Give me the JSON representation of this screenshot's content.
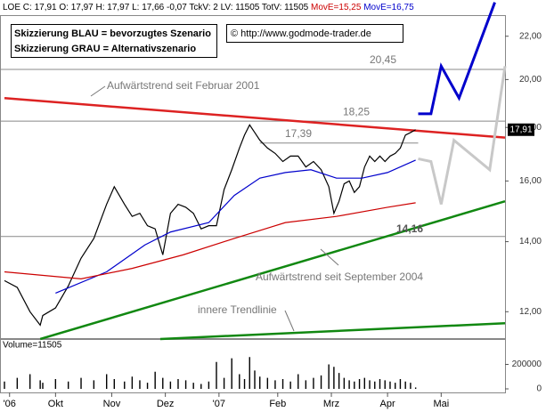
{
  "header": {
    "text": "LOE C: 17,91 O: 17,97 H: 17,97 L: 17,66 -0,07 TckV: 2 LV: 11505 TotV: 11505",
    "ma_red": "MovE=15,25",
    "ma_blue": "MovE=16,75"
  },
  "legend_box": {
    "line1": "Skizzierung BLAU = bevorzugtes Szenario",
    "line2": "Skizzierung GRAU = Alternativszenario",
    "copyright": "© http://www.godmode-trader.de"
  },
  "chart_data": [
    {
      "type": "line",
      "log_scale": true,
      "ylim": [
        11.3,
        23
      ],
      "xlim": [
        0,
        196
      ],
      "yticks": [
        {
          "value": 12,
          "label": "12,00"
        },
        {
          "value": 14,
          "label": "14,00"
        },
        {
          "value": 16,
          "label": "16,00"
        },
        {
          "value": 18,
          "label": "18,00"
        },
        {
          "value": 20,
          "label": "20,00"
        },
        {
          "value": 22,
          "label": "22,00"
        }
      ],
      "xticks": [
        {
          "value": 2,
          "label": "'06"
        },
        {
          "value": 20,
          "label": "Okt"
        },
        {
          "value": 42,
          "label": "Nov"
        },
        {
          "value": 63,
          "label": "Dez"
        },
        {
          "value": 84,
          "label": "'07"
        },
        {
          "value": 107,
          "label": "Feb"
        },
        {
          "value": 128,
          "label": "Mrz"
        },
        {
          "value": 150,
          "label": "Apr"
        },
        {
          "value": 171,
          "label": "Mai"
        }
      ],
      "last_price_label": "17,91",
      "series": [
        {
          "color": "#000000",
          "x": [
            0,
            5,
            10,
            14,
            15,
            20,
            25,
            30,
            35,
            40,
            43,
            47,
            50,
            53,
            56,
            59,
            62,
            65,
            68,
            71,
            74,
            77,
            80,
            83,
            86,
            89,
            92,
            94,
            96,
            98,
            100,
            103,
            106,
            109,
            112,
            115,
            118,
            121,
            124,
            127,
            129,
            131,
            133,
            135,
            137,
            139,
            141,
            143,
            145,
            147,
            149,
            151,
            153,
            155,
            157,
            159,
            161
          ],
          "values": [
            12.85,
            12.66,
            12.0,
            11.65,
            11.9,
            12.1,
            12.7,
            13.5,
            14.1,
            15.2,
            15.8,
            15.2,
            14.8,
            14.9,
            14.5,
            14.4,
            13.6,
            14.9,
            15.2,
            15.1,
            14.9,
            14.4,
            14.5,
            14.5,
            15.7,
            16.4,
            17.2,
            17.7,
            18.1,
            17.8,
            17.5,
            17.2,
            17.0,
            16.7,
            16.9,
            16.9,
            16.5,
            16.7,
            16.4,
            15.8,
            14.9,
            15.3,
            15.9,
            16.0,
            15.6,
            15.8,
            16.5,
            16.9,
            16.7,
            16.9,
            16.7,
            16.9,
            17.0,
            17.2,
            17.7,
            17.8,
            17.91
          ]
        },
        {
          "color": "#0000cc",
          "x": [
            20,
            40,
            55,
            65,
            80,
            90,
            100,
            110,
            120,
            130,
            140,
            150,
            161
          ],
          "values": [
            12.5,
            13.1,
            13.9,
            14.3,
            14.6,
            15.5,
            16.1,
            16.3,
            16.4,
            16.1,
            16.1,
            16.3,
            16.75
          ]
        },
        {
          "color": "#cc0000",
          "x": [
            0,
            30,
            50,
            70,
            90,
            110,
            130,
            150,
            161
          ],
          "values": [
            13.1,
            12.9,
            13.2,
            13.6,
            14.1,
            14.6,
            14.8,
            15.1,
            15.25
          ]
        },
        {
          "color": "#0000cc",
          "width": 3,
          "x": [
            162,
            167,
            171,
            178,
            192
          ],
          "values": [
            18.55,
            18.55,
            20.6,
            19.2,
            23.7
          ]
        },
        {
          "color": "#c8c8c8",
          "width": 3,
          "x": [
            162,
            167,
            171,
            176,
            190,
            196
          ],
          "values": [
            16.8,
            16.7,
            15.2,
            17.5,
            16.4,
            20.6
          ]
        }
      ],
      "trendlines": [
        {
          "color": "#dd2222",
          "x": [
            0,
            196
          ],
          "values": [
            19.2,
            17.6
          ]
        },
        {
          "color": "#118811",
          "x": [
            14,
            196
          ],
          "values": [
            11.3,
            15.3
          ]
        },
        {
          "color": "#118811",
          "x": [
            61,
            196
          ],
          "values": [
            11.3,
            11.7
          ]
        }
      ],
      "hlines": [
        {
          "value": 20.45,
          "label": "20,45"
        },
        {
          "value": 18.25,
          "label": "18,25"
        },
        {
          "value": 17.39,
          "label": "17,39",
          "x": [
            100,
            162
          ]
        },
        {
          "value": 14.16,
          "label": "14,16"
        }
      ],
      "annotations": [
        "Aufwärtstrend seit Februar 2001",
        "Aufwärtstrend seit September 2004",
        "innere Trendlinie"
      ]
    },
    {
      "type": "bar",
      "title": "Volume=11505",
      "ylim": [
        0,
        400000
      ],
      "yticks": [
        0,
        200000
      ],
      "color": "#000000",
      "x": [
        0,
        5,
        10,
        14,
        15,
        20,
        25,
        30,
        35,
        40,
        43,
        47,
        50,
        53,
        56,
        59,
        62,
        65,
        68,
        71,
        74,
        77,
        80,
        83,
        86,
        89,
        92,
        94,
        96,
        98,
        100,
        103,
        106,
        109,
        112,
        115,
        118,
        121,
        124,
        127,
        129,
        131,
        133,
        135,
        137,
        139,
        141,
        143,
        145,
        147,
        149,
        151,
        153,
        155,
        157,
        159,
        161
      ],
      "values": [
        60000,
        90000,
        120000,
        70000,
        50000,
        80000,
        60000,
        90000,
        70000,
        120000,
        80000,
        60000,
        100000,
        70000,
        50000,
        140000,
        90000,
        60000,
        80000,
        70000,
        50000,
        40000,
        60000,
        220000,
        90000,
        250000,
        120000,
        80000,
        260000,
        150000,
        100000,
        90000,
        70000,
        80000,
        60000,
        120000,
        70000,
        90000,
        110000,
        200000,
        180000,
        130000,
        90000,
        70000,
        60000,
        80000,
        90000,
        70000,
        60000,
        80000,
        70000,
        60000,
        50000,
        80000,
        60000,
        50000,
        11505
      ]
    }
  ]
}
